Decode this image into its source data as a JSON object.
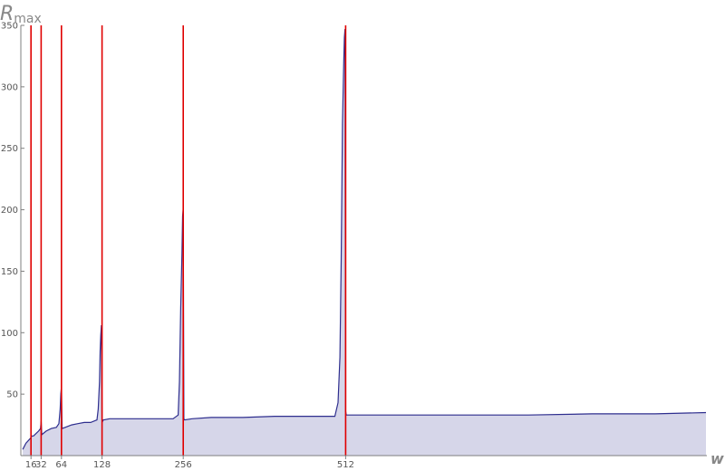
{
  "chart_data": {
    "type": "area",
    "title": "",
    "xlabel": "w",
    "ylabel": "R",
    "ylabel_sub": "max",
    "xlim": [
      0,
      1100
    ],
    "ylim": [
      0,
      350
    ],
    "x_ticks": [
      16,
      32,
      64,
      128,
      256,
      512
    ],
    "y_ticks": [
      50,
      100,
      150,
      200,
      250,
      300,
      350
    ],
    "grid": false,
    "series": [
      {
        "x": [
          3,
          8,
          15,
          16,
          17,
          20,
          24,
          28,
          31,
          32,
          33,
          40,
          48,
          56,
          60,
          62,
          63,
          64,
          65,
          70,
          80,
          90,
          100,
          110,
          120,
          122,
          124,
          125,
          126,
          127,
          128,
          129,
          130,
          140,
          160,
          180,
          200,
          220,
          240,
          248,
          250,
          252,
          254,
          255,
          256,
          257,
          258,
          270,
          300,
          350,
          400,
          450,
          480,
          495,
          500,
          503,
          505,
          507,
          509,
          510,
          511,
          512,
          513,
          514,
          530,
          600,
          700,
          800,
          900,
          1000,
          1080
        ],
        "y": [
          5,
          10,
          14,
          14,
          16,
          16,
          18,
          20,
          22,
          28,
          17,
          20,
          22,
          23,
          26,
          38,
          50,
          56,
          22,
          23,
          25,
          26,
          27,
          27,
          29,
          38,
          60,
          85,
          98,
          106,
          30,
          28,
          29,
          30,
          30,
          30,
          30,
          30,
          30,
          33,
          60,
          120,
          165,
          195,
          201,
          30,
          29,
          30,
          31,
          31,
          32,
          32,
          32,
          32,
          43,
          80,
          160,
          270,
          320,
          340,
          347,
          36,
          33,
          33,
          33,
          33,
          33,
          33,
          34,
          34,
          35
        ]
      }
    ],
    "vlines": [
      16,
      32,
      64,
      128,
      256,
      512
    ],
    "colors": {
      "line": "#2e2e8e",
      "fill": "#d6d6e9",
      "vline": "#e00000",
      "axis": "#7f7f7f"
    }
  }
}
